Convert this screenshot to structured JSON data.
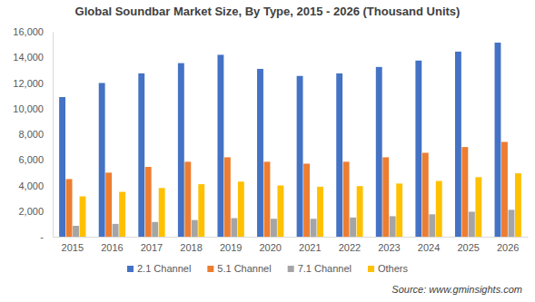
{
  "chart_data": {
    "type": "bar",
    "title": "Global Soundbar Market Size, By Type, 2015  - 2026 (Thousand Units)",
    "categories": [
      "2015",
      "2016",
      "2017",
      "2018",
      "2019",
      "2020",
      "2021",
      "2022",
      "2023",
      "2024",
      "2025",
      "2026"
    ],
    "series": [
      {
        "name": "2.1 Channel",
        "color": "#4472c4",
        "values": [
          10900,
          12000,
          12750,
          13550,
          14200,
          13100,
          12550,
          12750,
          13250,
          13750,
          14450,
          15150
        ]
      },
      {
        "name": "5.1 Channel",
        "color": "#ed7d31",
        "values": [
          4500,
          5000,
          5450,
          5850,
          6200,
          5850,
          5700,
          5850,
          6200,
          6550,
          7000,
          7400
        ]
      },
      {
        "name": "7.1 Channel",
        "color": "#a5a5a5",
        "values": [
          850,
          1000,
          1150,
          1300,
          1450,
          1400,
          1400,
          1500,
          1600,
          1750,
          1950,
          2100
        ]
      },
      {
        "name": "Others",
        "color": "#ffc000",
        "values": [
          3150,
          3500,
          3800,
          4100,
          4300,
          4000,
          3900,
          3950,
          4150,
          4350,
          4650,
          4950
        ]
      }
    ],
    "ylim": [
      0,
      16000
    ],
    "yticks": [
      {
        "value": 0,
        "label": "-"
      },
      {
        "value": 2000,
        "label": "2,000"
      },
      {
        "value": 4000,
        "label": "4,000"
      },
      {
        "value": 6000,
        "label": "6,000"
      },
      {
        "value": 8000,
        "label": "8,000"
      },
      {
        "value": 10000,
        "label": "10,000"
      },
      {
        "value": 12000,
        "label": "12,000"
      },
      {
        "value": 14000,
        "label": "14,000"
      },
      {
        "value": 16000,
        "label": "16,000"
      }
    ],
    "grid": false,
    "legend": "bottom",
    "annotations": [
      "Source: www.gminsights.com"
    ]
  }
}
